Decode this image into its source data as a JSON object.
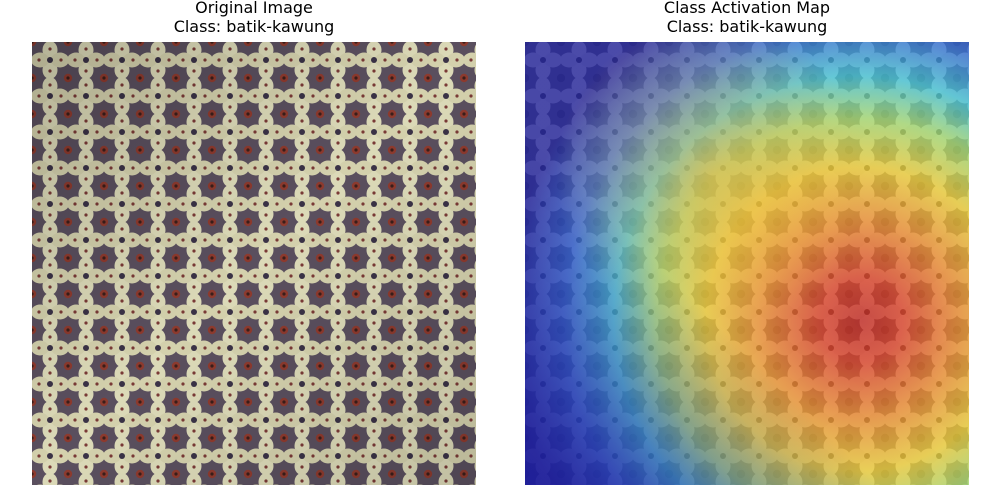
{
  "panels": [
    {
      "title": "Original Image",
      "subtitle": "Class: batik-kawung",
      "kind": "photo"
    },
    {
      "title": "Class Activation Map",
      "subtitle": "Class: batik-kawung",
      "kind": "heatmap-overlay",
      "colormap": "jet"
    }
  ],
  "colors": {
    "fabric_base": "#c9c6a0",
    "motif_light": "#e4e2c2",
    "motif_dark": "#3e3648",
    "motif_red": "#8a3a32",
    "heat_cold": "#1a1a9a",
    "heat_hot": "#d42a1c"
  }
}
